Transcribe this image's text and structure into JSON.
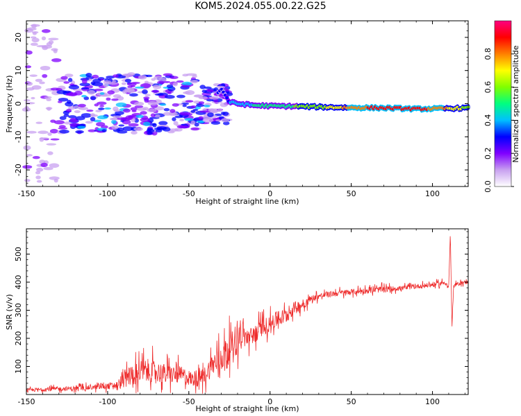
{
  "title": "KOM5.2024.055.00.22.G25",
  "chart_data": [
    {
      "type": "heatmap",
      "xlabel": "Height of straight line (km)",
      "ylabel": "Frequency (Hz)",
      "xlim": [
        -150,
        122
      ],
      "ylim": [
        -25,
        25
      ],
      "xticks": [
        -150,
        -100,
        -50,
        0,
        50,
        100
      ],
      "yticks": [
        -20,
        -10,
        0,
        10,
        20
      ],
      "colorbar": {
        "label": "Normalized spectral amplitude",
        "range": [
          0,
          1
        ],
        "ticks": [
          "0.0",
          "0.2",
          "0.4",
          "0.6",
          "0.8"
        ],
        "colors": [
          "#ffffff",
          "#c8a0f0",
          "#8000ff",
          "#0000ff",
          "#00c0ff",
          "#00ff80",
          "#80ff00",
          "#ffff00",
          "#ff8000",
          "#ff0000",
          "#ff0080"
        ]
      },
      "signal_track": [
        {
          "x": -150,
          "freq": 0.0,
          "amp": 0.05
        },
        {
          "x": -130,
          "freq": 2.0,
          "amp": 0.15
        },
        {
          "x": -110,
          "freq": 1.0,
          "amp": 0.2
        },
        {
          "x": -100,
          "freq": -0.5,
          "amp": 0.25
        },
        {
          "x": -85,
          "freq": 3.0,
          "amp": 0.3
        },
        {
          "x": -70,
          "freq": -1.0,
          "amp": 0.3
        },
        {
          "x": -55,
          "freq": 1.0,
          "amp": 0.3
        },
        {
          "x": -45,
          "freq": -4.0,
          "amp": 0.25
        },
        {
          "x": -30,
          "freq": 4.5,
          "amp": 0.3
        },
        {
          "x": -25,
          "freq": 0.5,
          "amp": 0.35
        },
        {
          "x": -20,
          "freq": 0.0,
          "amp": 0.4
        },
        {
          "x": -10,
          "freq": -0.5,
          "amp": 0.45
        },
        {
          "x": 0,
          "freq": -0.7,
          "amp": 0.5
        },
        {
          "x": 15,
          "freq": -0.8,
          "amp": 0.55
        },
        {
          "x": 30,
          "freq": -1.0,
          "amp": 0.6
        },
        {
          "x": 50,
          "freq": -1.2,
          "amp": 0.8
        },
        {
          "x": 70,
          "freq": -1.3,
          "amp": 0.9
        },
        {
          "x": 90,
          "freq": -1.6,
          "amp": 0.9
        },
        {
          "x": 105,
          "freq": -1.5,
          "amp": 0.8
        },
        {
          "x": 122,
          "freq": -1.3,
          "amp": 0.6
        }
      ]
    },
    {
      "type": "line",
      "xlabel": "Height of straight line (km)",
      "ylabel": "SNR (v/v)",
      "xlim": [
        -150,
        122
      ],
      "ylim": [
        0,
        590
      ],
      "xticks": [
        -150,
        -100,
        -50,
        0,
        50,
        100
      ],
      "yticks": [
        100,
        200,
        300,
        400,
        500
      ],
      "color": "#ee2a2a",
      "series": [
        {
          "x": [
            -150,
            -140,
            -130,
            -120,
            -110,
            -100,
            -92,
            -90,
            -85,
            -80,
            -75,
            -70,
            -65,
            -60,
            -55,
            -50,
            -45,
            -40,
            -35,
            -30,
            -25,
            -20,
            -18,
            -15,
            -10,
            -5,
            0,
            5,
            10,
            15,
            20,
            25,
            30,
            40,
            50,
            60,
            70,
            80,
            90,
            100,
            105,
            108,
            110,
            111,
            112,
            113,
            115,
            118,
            122
          ],
          "values": [
            15,
            18,
            20,
            22,
            25,
            30,
            35,
            55,
            70,
            80,
            85,
            80,
            75,
            70,
            70,
            60,
            50,
            70,
            110,
            130,
            170,
            190,
            230,
            200,
            210,
            240,
            250,
            270,
            280,
            310,
            320,
            340,
            350,
            360,
            365,
            370,
            375,
            378,
            385,
            390,
            395,
            400,
            380,
            580,
            240,
            385,
            392,
            398,
            400
          ],
          "noise": [
            8,
            10,
            10,
            12,
            12,
            15,
            20,
            45,
            55,
            60,
            60,
            55,
            50,
            45,
            45,
            40,
            35,
            45,
            60,
            70,
            70,
            70,
            80,
            50,
            45,
            45,
            40,
            40,
            40,
            30,
            25,
            20,
            15,
            15,
            15,
            15,
            15,
            12,
            12,
            12,
            12,
            12,
            10,
            0,
            0,
            10,
            10,
            10,
            10
          ]
        }
      ]
    }
  ]
}
